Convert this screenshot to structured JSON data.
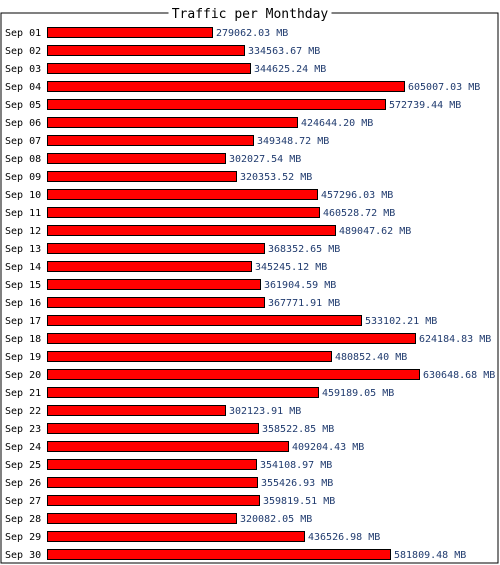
{
  "colors": {
    "bar_fill": "#ff0000",
    "bar_stroke": "#000000",
    "value_text": "#1f3a6e",
    "frame": "#000000",
    "background": "#ffffff"
  },
  "chart_data": {
    "type": "bar",
    "orientation": "horizontal",
    "title": "Traffic per Monthday",
    "xlabel": "",
    "ylabel": "",
    "grid": false,
    "categories": [
      "Sep 01",
      "Sep 02",
      "Sep 03",
      "Sep 04",
      "Sep 05",
      "Sep 06",
      "Sep 07",
      "Sep 08",
      "Sep 09",
      "Sep 10",
      "Sep 11",
      "Sep 12",
      "Sep 13",
      "Sep 14",
      "Sep 15",
      "Sep 16",
      "Sep 17",
      "Sep 18",
      "Sep 19",
      "Sep 20",
      "Sep 21",
      "Sep 22",
      "Sep 23",
      "Sep 24",
      "Sep 25",
      "Sep 26",
      "Sep 27",
      "Sep 28",
      "Sep 29",
      "Sep 30"
    ],
    "values": [
      279062.03,
      334563.67,
      344625.24,
      605007.03,
      572739.44,
      424644.2,
      349348.72,
      302027.54,
      320353.52,
      457296.03,
      460528.72,
      489047.62,
      368352.65,
      345245.12,
      361904.59,
      367771.91,
      533102.21,
      624184.83,
      480852.4,
      630648.68,
      459189.05,
      302123.91,
      358522.85,
      409204.43,
      354108.97,
      355426.93,
      359819.51,
      320082.05,
      436526.98,
      581809.48
    ],
    "value_labels": [
      "279062.03 MB",
      "334563.67 MB",
      "344625.24 MB",
      "605007.03 MB",
      "572739.44 MB",
      "424644.20 MB",
      "349348.72 MB",
      "302027.54 MB",
      "320353.52 MB",
      "457296.03 MB",
      "460528.72 MB",
      "489047.62 MB",
      "368352.65 MB",
      "345245.12 MB",
      "361904.59 MB",
      "367771.91 MB",
      "533102.21 MB",
      "624184.83 MB",
      "480852.40 MB",
      "630648.68 MB",
      "459189.05 MB",
      "302123.91 MB",
      "358522.85 MB",
      "409204.43 MB",
      "354108.97 MB",
      "355426.93 MB",
      "359819.51 MB",
      "320082.05 MB",
      "436526.98 MB",
      "581809.48 MB"
    ],
    "unit": "MB",
    "xlim": [
      0,
      630648.68
    ]
  }
}
